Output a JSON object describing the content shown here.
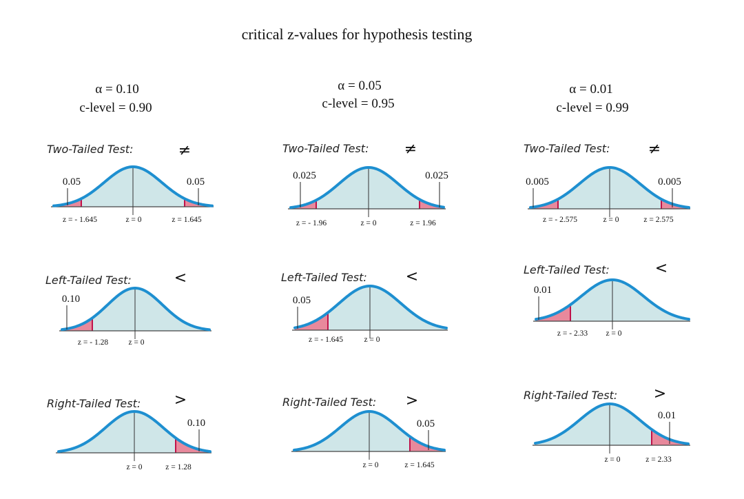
{
  "title": "critical z-values for hypothesis testing",
  "colors": {
    "curve": "#1e8fd0",
    "fill": "#cfe6e8",
    "tail": "#e8899c",
    "tail_edge": "#c0124a",
    "baseline": "#444444"
  },
  "columns": [
    {
      "alpha": "α = 0.10",
      "clevel": "c-level = 0.90",
      "tests": [
        {
          "label": "Two-Tailed Test:",
          "symbol": "≠",
          "left_alpha": "0.05",
          "right_alpha": "0.05",
          "z_left": "z = - 1.645",
          "z_mid": "z = 0",
          "z_right": "z = 1.645",
          "tail": "both"
        },
        {
          "label": "Left-Tailed Test:",
          "symbol": "<",
          "left_alpha": "0.10",
          "z_left": "z = - 1.28",
          "z_mid": "z = 0",
          "tail": "left"
        },
        {
          "label": "Right-Tailed Test:",
          "symbol": ">",
          "right_alpha": "0.10",
          "z_mid": "z = 0",
          "z_right": "z = 1.28",
          "tail": "right"
        }
      ]
    },
    {
      "alpha": "α = 0.05",
      "clevel": "c-level = 0.95",
      "tests": [
        {
          "label": "Two-Tailed Test:",
          "symbol": "≠",
          "left_alpha": "0.025",
          "right_alpha": "0.025",
          "z_left": "z = - 1.96",
          "z_mid": "z = 0",
          "z_right": "z = 1.96",
          "tail": "both"
        },
        {
          "label": "Left-Tailed Test:",
          "symbol": "<",
          "left_alpha": "0.05",
          "z_left": "z = - 1.645",
          "z_mid": "z = 0",
          "tail": "left"
        },
        {
          "label": "Right-Tailed Test:",
          "symbol": ">",
          "right_alpha": "0.05",
          "z_mid": "z = 0",
          "z_right": "z = 1.645",
          "tail": "right"
        }
      ]
    },
    {
      "alpha": "α = 0.01",
      "clevel": "c-level = 0.99",
      "tests": [
        {
          "label": "Two-Tailed Test:",
          "symbol": "≠",
          "left_alpha": "0.005",
          "right_alpha": "0.005",
          "z_left": "z = - 2.575",
          "z_mid": "z = 0",
          "z_right": "z = 2.575",
          "tail": "both"
        },
        {
          "label": "Left-Tailed Test:",
          "symbol": "<",
          "left_alpha": "0.01",
          "z_left": "z = - 2.33",
          "z_mid": "z = 0",
          "tail": "left"
        },
        {
          "label": "Right-Tailed Test:",
          "symbol": ">",
          "right_alpha": "0.01",
          "z_mid": "z = 0",
          "z_right": "z = 2.33",
          "tail": "right"
        }
      ]
    }
  ]
}
